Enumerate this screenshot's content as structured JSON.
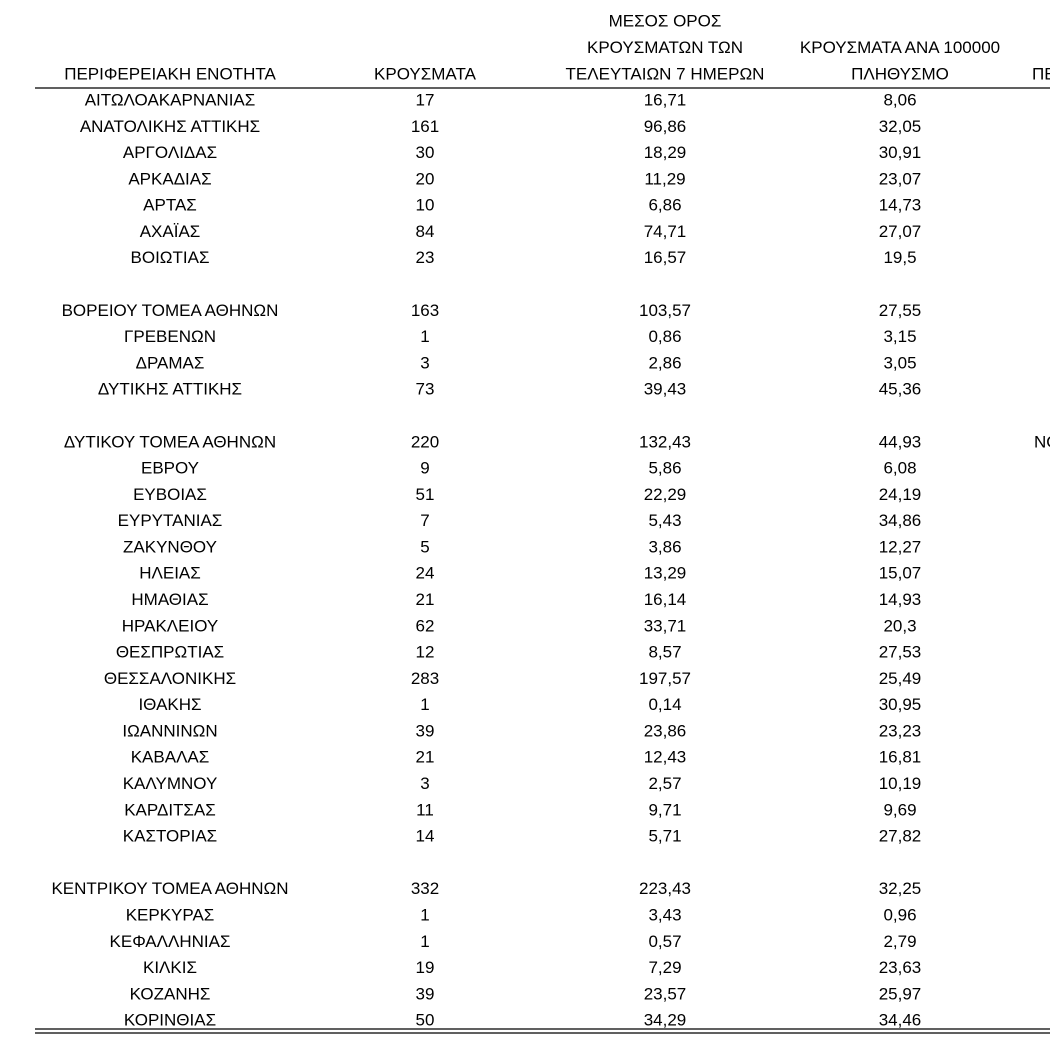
{
  "table": {
    "header": [
      [
        "ΠΕΡΙΦΕΡΕΙΑΚΗ ΕΝΟΤΗΤΑ"
      ],
      [
        "ΚΡΟΥΣΜΑΤΑ"
      ],
      [
        "ΜΕΣΟΣ ΟΡΟΣ",
        "ΚΡΟΥΣΜΑΤΩΝ ΤΩΝ",
        "ΤΕΛΕΥΤΑΙΩΝ 7 ΗΜΕΡΩΝ"
      ],
      [
        "ΚΡΟΥΣΜΑΤΑ ΑΝΑ 100000",
        "ΠΛΗΘΥΣΜΟ"
      ],
      [
        "ΠΕ"
      ]
    ],
    "groups": [
      [
        [
          "ΑΙΤΩΛΟΑΚΑΡΝΑΝΙΑΣ",
          "17",
          "16,71",
          "8,06"
        ],
        [
          "ΑΝΑΤΟΛΙΚΗΣ ΑΤΤΙΚΗΣ",
          "161",
          "96,86",
          "32,05"
        ],
        [
          "ΑΡΓΟΛΙΔΑΣ",
          "30",
          "18,29",
          "30,91"
        ],
        [
          "ΑΡΚΑΔΙΑΣ",
          "20",
          "11,29",
          "23,07"
        ],
        [
          "ΑΡΤΑΣ",
          "10",
          "6,86",
          "14,73"
        ],
        [
          "ΑΧΑΪΑΣ",
          "84",
          "74,71",
          "27,07"
        ],
        [
          "ΒΟΙΩΤΙΑΣ",
          "23",
          "16,57",
          "19,5"
        ]
      ],
      [
        [
          "ΒΟΡΕΙΟΥ ΤΟΜΕΑ ΑΘΗΝΩΝ",
          "163",
          "103,57",
          "27,55"
        ],
        [
          "ΓΡΕΒΕΝΩΝ",
          "1",
          "0,86",
          "3,15"
        ],
        [
          "ΔΡΑΜΑΣ",
          "3",
          "2,86",
          "3,05"
        ],
        [
          "ΔΥΤΙΚΗΣ ΑΤΤΙΚΗΣ",
          "73",
          "39,43",
          "45,36"
        ]
      ],
      [
        [
          "ΔΥΤΙΚΟΥ ΤΟΜΕΑ ΑΘΗΝΩΝ",
          "220",
          "132,43",
          "44,93",
          "ΝΟ"
        ],
        [
          "ΕΒΡΟΥ",
          "9",
          "5,86",
          "6,08"
        ],
        [
          "ΕΥΒΟΙΑΣ",
          "51",
          "22,29",
          "24,19"
        ],
        [
          "ΕΥΡΥΤΑΝΙΑΣ",
          "7",
          "5,43",
          "34,86"
        ],
        [
          "ΖΑΚΥΝΘΟΥ",
          "5",
          "3,86",
          "12,27"
        ],
        [
          "ΗΛΕΙΑΣ",
          "24",
          "13,29",
          "15,07"
        ],
        [
          "ΗΜΑΘΙΑΣ",
          "21",
          "16,14",
          "14,93"
        ],
        [
          "ΗΡΑΚΛΕΙΟΥ",
          "62",
          "33,71",
          "20,3"
        ],
        [
          "ΘΕΣΠΡΩΤΙΑΣ",
          "12",
          "8,57",
          "27,53"
        ],
        [
          "ΘΕΣΣΑΛΟΝΙΚΗΣ",
          "283",
          "197,57",
          "25,49"
        ],
        [
          "ΙΘΑΚΗΣ",
          "1",
          "0,14",
          "30,95"
        ],
        [
          "ΙΩΑΝΝΙΝΩΝ",
          "39",
          "23,86",
          "23,23"
        ],
        [
          "ΚΑΒΑΛΑΣ",
          "21",
          "12,43",
          "16,81"
        ],
        [
          "ΚΑΛΥΜΝΟΥ",
          "3",
          "2,57",
          "10,19"
        ],
        [
          "ΚΑΡΔΙΤΣΑΣ",
          "11",
          "9,71",
          "9,69"
        ],
        [
          "ΚΑΣΤΟΡΙΑΣ",
          "14",
          "5,71",
          "27,82"
        ]
      ],
      [
        [
          "ΚΕΝΤΡΙΚΟΥ ΤΟΜΕΑ ΑΘΗΝΩΝ",
          "332",
          "223,43",
          "32,25"
        ],
        [
          "ΚΕΡΚΥΡΑΣ",
          "1",
          "3,43",
          "0,96"
        ],
        [
          "ΚΕΦΑΛΛΗΝΙΑΣ",
          "1",
          "0,57",
          "2,79"
        ],
        [
          "ΚΙΛΚΙΣ",
          "19",
          "7,29",
          "23,63"
        ],
        [
          "ΚΟΖΑΝΗΣ",
          "39",
          "23,57",
          "25,97"
        ],
        [
          "ΚΟΡΙΝΘΙΑΣ",
          "50",
          "34,29",
          "34,46"
        ]
      ]
    ]
  }
}
